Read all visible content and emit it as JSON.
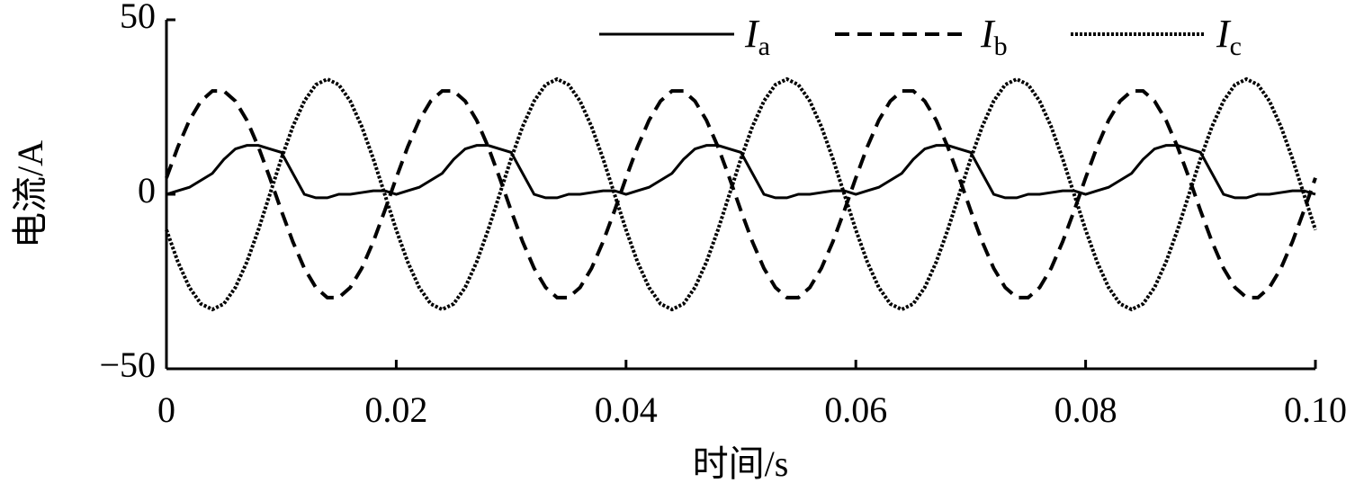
{
  "chart_data": {
    "type": "line",
    "x_label": "时间/s",
    "y_label": "电流/A",
    "xlim": [
      0,
      0.1
    ],
    "ylim": [
      -50,
      50
    ],
    "xticks": [
      0,
      0.02,
      0.04,
      0.06,
      0.08,
      {
        "value": 0.1,
        "label": "0.10"
      }
    ],
    "yticks": [
      {
        "value": -50,
        "label": "−50"
      },
      0,
      50
    ],
    "grid": false,
    "legend": "upper right",
    "x": [
      0,
      0.001,
      0.002,
      0.003,
      0.004,
      0.005,
      0.006,
      0.007,
      0.008,
      0.009,
      0.01,
      0.011,
      0.012,
      0.013,
      0.014,
      0.015,
      0.016,
      0.017,
      0.018,
      0.019,
      0.02,
      0.021,
      0.022,
      0.023,
      0.024,
      0.025,
      0.026,
      0.027,
      0.028,
      0.029,
      0.03,
      0.031,
      0.032,
      0.033,
      0.034,
      0.035,
      0.036,
      0.037,
      0.038,
      0.039,
      0.04,
      0.041,
      0.042,
      0.043,
      0.044,
      0.045,
      0.046,
      0.047,
      0.048,
      0.049,
      0.05,
      0.051,
      0.052,
      0.053,
      0.054,
      0.055,
      0.056,
      0.057,
      0.058,
      0.059,
      0.06,
      0.061,
      0.062,
      0.063,
      0.064,
      0.065,
      0.066,
      0.067,
      0.068,
      0.069,
      0.07,
      0.071,
      0.072,
      0.073,
      0.074,
      0.075,
      0.076,
      0.077,
      0.078,
      0.079,
      0.08,
      0.081,
      0.082,
      0.083,
      0.084,
      0.085,
      0.086,
      0.087,
      0.088,
      0.089,
      0.09,
      0.091,
      0.092,
      0.093,
      0.094,
      0.095,
      0.096,
      0.097,
      0.098,
      0.099,
      0.1
    ],
    "series": [
      {
        "name": "Ia",
        "color": "#000000",
        "linestyle": "solid",
        "values": [
          0,
          1,
          2,
          4,
          6,
          10,
          13,
          14,
          14,
          13,
          12,
          6,
          0,
          -1,
          -1,
          0,
          0,
          0.5,
          1,
          1,
          0,
          1,
          2,
          4,
          6,
          10,
          13,
          14,
          14,
          13,
          12,
          6,
          0,
          -1,
          -1,
          0,
          0,
          0.5,
          1,
          1,
          0,
          1,
          2,
          4,
          6,
          10,
          13,
          14,
          14,
          13,
          12,
          6,
          0,
          -1,
          -1,
          0,
          0,
          0.5,
          1,
          1,
          0,
          1,
          2,
          4,
          6,
          10,
          13,
          14,
          14,
          13,
          12,
          6,
          0,
          -1,
          -1,
          0,
          0,
          0.5,
          1,
          1,
          0,
          1,
          2,
          4,
          6,
          10,
          13,
          14,
          14,
          13,
          12,
          6,
          0,
          -1,
          -1,
          0,
          0,
          0.5,
          1,
          1,
          0
        ]
      },
      {
        "name": "Ib",
        "color": "#000000",
        "linestyle": "dashed",
        "values": [
          4.7,
          13.6,
          21.2,
          26.7,
          29.6,
          29.6,
          26.7,
          21.2,
          13.6,
          4.7,
          -4.7,
          -13.6,
          -21.2,
          -26.7,
          -29.6,
          -29.6,
          -26.7,
          -21.2,
          -13.6,
          -4.7,
          4.7,
          13.6,
          21.2,
          26.7,
          29.6,
          29.6,
          26.7,
          21.2,
          13.6,
          4.7,
          -4.7,
          -13.6,
          -21.2,
          -26.7,
          -29.6,
          -29.6,
          -26.7,
          -21.2,
          -13.6,
          -4.7,
          4.7,
          13.6,
          21.2,
          26.7,
          29.6,
          29.6,
          26.7,
          21.2,
          13.6,
          4.7,
          -4.7,
          -13.6,
          -21.2,
          -26.7,
          -29.6,
          -29.6,
          -26.7,
          -21.2,
          -13.6,
          -4.7,
          4.7,
          13.6,
          21.2,
          26.7,
          29.6,
          29.6,
          26.7,
          21.2,
          13.6,
          4.7,
          -4.7,
          -13.6,
          -21.2,
          -26.7,
          -29.6,
          -29.6,
          -26.7,
          -21.2,
          -13.6,
          -4.7,
          4.7,
          13.6,
          21.2,
          26.7,
          29.6,
          29.6,
          26.7,
          21.2,
          13.6,
          4.7,
          -4.7,
          -13.6,
          -21.2,
          -26.7,
          -29.6,
          -29.6,
          -26.7,
          -21.2,
          -13.6,
          -4.7,
          4.7
        ]
      },
      {
        "name": "Ic",
        "color": "#000000",
        "linestyle": "dotted",
        "values": [
          -10.2,
          -19.4,
          -26.7,
          -31.4,
          -33,
          -31.4,
          -26.7,
          -19.4,
          -10.2,
          0,
          10.2,
          19.4,
          26.7,
          31.4,
          33,
          31.4,
          26.7,
          19.4,
          10.2,
          0,
          -10.2,
          -19.4,
          -26.7,
          -31.4,
          -33,
          -31.4,
          -26.7,
          -19.4,
          -10.2,
          0,
          10.2,
          19.4,
          26.7,
          31.4,
          33,
          31.4,
          26.7,
          19.4,
          10.2,
          0,
          -10.2,
          -19.4,
          -26.7,
          -31.4,
          -33,
          -31.4,
          -26.7,
          -19.4,
          -10.2,
          0,
          10.2,
          19.4,
          26.7,
          31.4,
          33,
          31.4,
          26.7,
          19.4,
          10.2,
          0,
          -10.2,
          -19.4,
          -26.7,
          -31.4,
          -33,
          -31.4,
          -26.7,
          -19.4,
          -10.2,
          0,
          10.2,
          19.4,
          26.7,
          31.4,
          33,
          31.4,
          26.7,
          19.4,
          10.2,
          0,
          -10.2,
          -19.4,
          -26.7,
          -31.4,
          -33,
          -31.4,
          -26.7,
          -19.4,
          -10.2,
          0,
          10.2,
          19.4,
          26.7,
          31.4,
          33,
          31.4,
          26.7,
          19.4,
          10.2,
          0,
          -10.2
        ]
      }
    ]
  }
}
